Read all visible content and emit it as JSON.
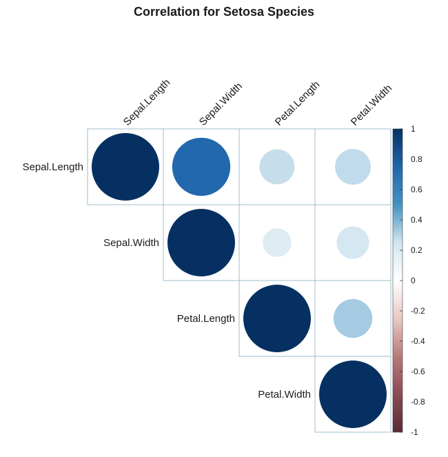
{
  "chart_data": {
    "type": "heatmap",
    "style": "corrplot-circle-upper",
    "title": "Correlation for Setosa Species",
    "variables": [
      "Sepal.Length",
      "Sepal.Width",
      "Petal.Length",
      "Petal.Width"
    ],
    "matrix": [
      [
        1.0,
        0.74,
        0.27,
        0.28
      ],
      [
        0.74,
        1.0,
        0.18,
        0.23
      ],
      [
        0.27,
        0.18,
        1.0,
        0.33
      ],
      [
        0.28,
        0.23,
        0.33,
        1.0
      ]
    ],
    "colorbar": {
      "range": [
        -1,
        1
      ],
      "ticks": [
        "1",
        "0.8",
        "0.6",
        "0.4",
        "0.2",
        "0",
        "-0.2",
        "-0.4",
        "-0.6",
        "-0.8",
        "-1"
      ],
      "tick_values": [
        1,
        0.8,
        0.6,
        0.4,
        0.2,
        0,
        -0.2,
        -0.4,
        -0.6,
        -0.8,
        -1
      ],
      "stops": [
        {
          "v": -1,
          "color": "#67001f"
        },
        {
          "v": -0.5,
          "color": "#d6604d"
        },
        {
          "v": 0,
          "color": "#ffffff"
        },
        {
          "v": 0.25,
          "color": "#d1e5f0"
        },
        {
          "v": 0.5,
          "color": "#4393c3"
        },
        {
          "v": 0.75,
          "color": "#2166ac"
        },
        {
          "v": 1,
          "color": "#053061"
        }
      ]
    },
    "colors": {
      "positive_full": "#0b3265",
      "positive_mid": "#2e6aa6",
      "weak_positive": "#cfdde8",
      "negative_full": "#5a2b34",
      "cell_border": "#9fbccd"
    }
  }
}
